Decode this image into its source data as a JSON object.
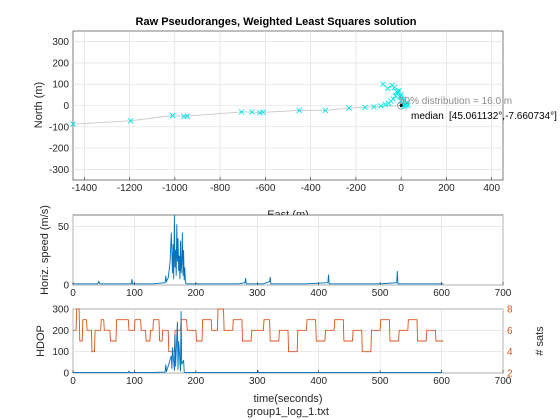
{
  "chart_data": [
    {
      "type": "scatter",
      "title": "Raw Pseudoranges, Weighted Least Squares solution",
      "xlabel": "East (m)",
      "ylabel": "North (m)",
      "xlim": [
        -1450,
        450
      ],
      "ylim": [
        -350,
        350
      ],
      "xticks": [
        -1400,
        -1200,
        -1000,
        -800,
        -600,
        -400,
        -200,
        0,
        200,
        400
      ],
      "yticks": [
        -300,
        -200,
        -100,
        0,
        100,
        200,
        300
      ],
      "grid": true,
      "color": "#00e6e6",
      "track_color": "#c8c8c8",
      "points": {
        "x": [
          -1450,
          -1195,
          -1010,
          -960,
          -945,
          -705,
          -660,
          -625,
          -610,
          -450,
          -335,
          -230,
          -160,
          -120,
          -90,
          -70,
          -55,
          -45,
          -35,
          -25,
          -15,
          -10,
          -5,
          0,
          5,
          10,
          15,
          20,
          25,
          30,
          -80,
          -60,
          -40,
          -30,
          -20,
          0,
          10
        ],
        "y": [
          -88,
          -72,
          -47,
          -52,
          -50,
          -30,
          -30,
          -34,
          -32,
          -23,
          -23,
          -12,
          -9,
          -6,
          -2,
          5,
          10,
          20,
          30,
          45,
          60,
          70,
          40,
          20,
          10,
          0,
          -5,
          5,
          15,
          0,
          100,
          80,
          95,
          85,
          65,
          50,
          30
        ]
      },
      "circle": {
        "center": [
          0,
          0
        ],
        "radius_m": 16.0
      },
      "annotations": {
        "distribution": "50% distribution = 16.0 m",
        "median_label": "median",
        "median_coords": "[45.061132°,-7.660734°]"
      }
    },
    {
      "type": "line",
      "xlabel": "",
      "ylabel": "Horiz. speed (m/s)",
      "xlim": [
        0,
        700
      ],
      "ylim": [
        0,
        60
      ],
      "xticks": [
        0,
        100,
        200,
        300,
        400,
        500,
        600,
        700
      ],
      "yticks": [
        0,
        50
      ],
      "grid": true,
      "color": "#0072bd",
      "x": [
        0,
        40,
        42,
        44,
        80,
        95,
        96,
        97,
        130,
        150,
        151,
        152,
        155,
        158,
        160,
        162,
        163,
        164,
        165,
        166,
        167,
        168,
        169,
        170,
        171,
        172,
        173,
        174,
        175,
        176,
        177,
        178,
        179,
        180,
        181,
        182,
        183,
        184,
        190,
        230,
        270,
        280,
        281,
        282,
        310,
        320,
        321,
        322,
        380,
        415,
        416,
        417,
        430,
        470,
        500,
        527,
        528,
        529,
        540,
        600,
        603
      ],
      "y": [
        1,
        1,
        3,
        1,
        1,
        1,
        5,
        1,
        1,
        2,
        8,
        3,
        6,
        20,
        45,
        10,
        35,
        5,
        60,
        15,
        30,
        8,
        52,
        20,
        40,
        12,
        25,
        5,
        38,
        10,
        18,
        45,
        8,
        30,
        4,
        15,
        3,
        1,
        1,
        1,
        1,
        2,
        6,
        1,
        1,
        3,
        7,
        1,
        1,
        2,
        9,
        1,
        1,
        1,
        1,
        2,
        12,
        1,
        1,
        1,
        1
      ]
    },
    {
      "type": "line",
      "xlabel": "time(seconds)",
      "ylabel": "HDOP",
      "y2label": "# sats",
      "xlim": [
        0,
        700
      ],
      "ylim": [
        0,
        300
      ],
      "y2lim": [
        2,
        8
      ],
      "xticks": [
        0,
        100,
        200,
        300,
        400,
        500,
        600,
        700
      ],
      "yticks": [
        0,
        100,
        200,
        300
      ],
      "y2ticks": [
        2,
        4,
        6,
        8
      ],
      "grid": true,
      "series": [
        {
          "axis": "left",
          "color": "#0072bd",
          "x": [
            0,
            90,
            91,
            92,
            130,
            150,
            151,
            152,
            160,
            161,
            162,
            165,
            166,
            167,
            170,
            171,
            172,
            175,
            176,
            177,
            180,
            181,
            182,
            200,
            300,
            301,
            302,
            400,
            500,
            600
          ],
          "y": [
            3,
            3,
            8,
            3,
            3,
            4,
            40,
            5,
            80,
            20,
            120,
            10,
            180,
            30,
            240,
            15,
            150,
            8,
            290,
            40,
            60,
            5,
            3,
            3,
            3,
            10,
            3,
            3,
            3,
            3
          ]
        },
        {
          "axis": "right",
          "color": "#d95319",
          "x": [
            0,
            5,
            6,
            10,
            11,
            15,
            16,
            22,
            23,
            30,
            31,
            35,
            36,
            45,
            46,
            50,
            51,
            60,
            61,
            70,
            71,
            90,
            91,
            100,
            101,
            110,
            111,
            118,
            119,
            125,
            126,
            130,
            131,
            140,
            141,
            145,
            146,
            155,
            156,
            165,
            166,
            175,
            176,
            185,
            186,
            200,
            201,
            210,
            211,
            225,
            226,
            235,
            236,
            245,
            246,
            260,
            261,
            275,
            276,
            290,
            291,
            310,
            311,
            320,
            321,
            335,
            336,
            350,
            351,
            365,
            366,
            380,
            381,
            395,
            396,
            410,
            411,
            425,
            426,
            440,
            441,
            455,
            456,
            470,
            471,
            485,
            486,
            500,
            501,
            515,
            516,
            530,
            531,
            545,
            546,
            560,
            561,
            575,
            576,
            590,
            591,
            603
          ],
          "y": [
            6,
            6,
            8,
            8,
            5,
            5,
            7,
            7,
            6,
            6,
            4,
            4,
            6,
            6,
            7,
            7,
            6,
            6,
            5,
            5,
            7,
            7,
            6,
            6,
            7,
            7,
            6,
            6,
            5,
            5,
            6,
            6,
            7,
            7,
            5,
            5,
            6,
            6,
            4,
            4,
            6,
            6,
            7,
            7,
            6,
            6,
            5,
            5,
            7,
            7,
            6,
            6,
            8,
            8,
            6,
            6,
            7,
            7,
            5,
            5,
            6,
            6,
            7,
            7,
            5,
            5,
            6,
            6,
            4,
            4,
            6,
            6,
            7,
            7,
            5,
            5,
            6,
            6,
            7,
            7,
            5,
            5,
            6,
            6,
            4,
            4,
            6,
            6,
            7,
            7,
            5,
            5,
            6,
            6,
            7,
            7,
            5,
            5,
            6,
            6,
            5,
            5
          ]
        }
      ]
    }
  ],
  "figure": {
    "filename": "group1_log_1.txt"
  }
}
